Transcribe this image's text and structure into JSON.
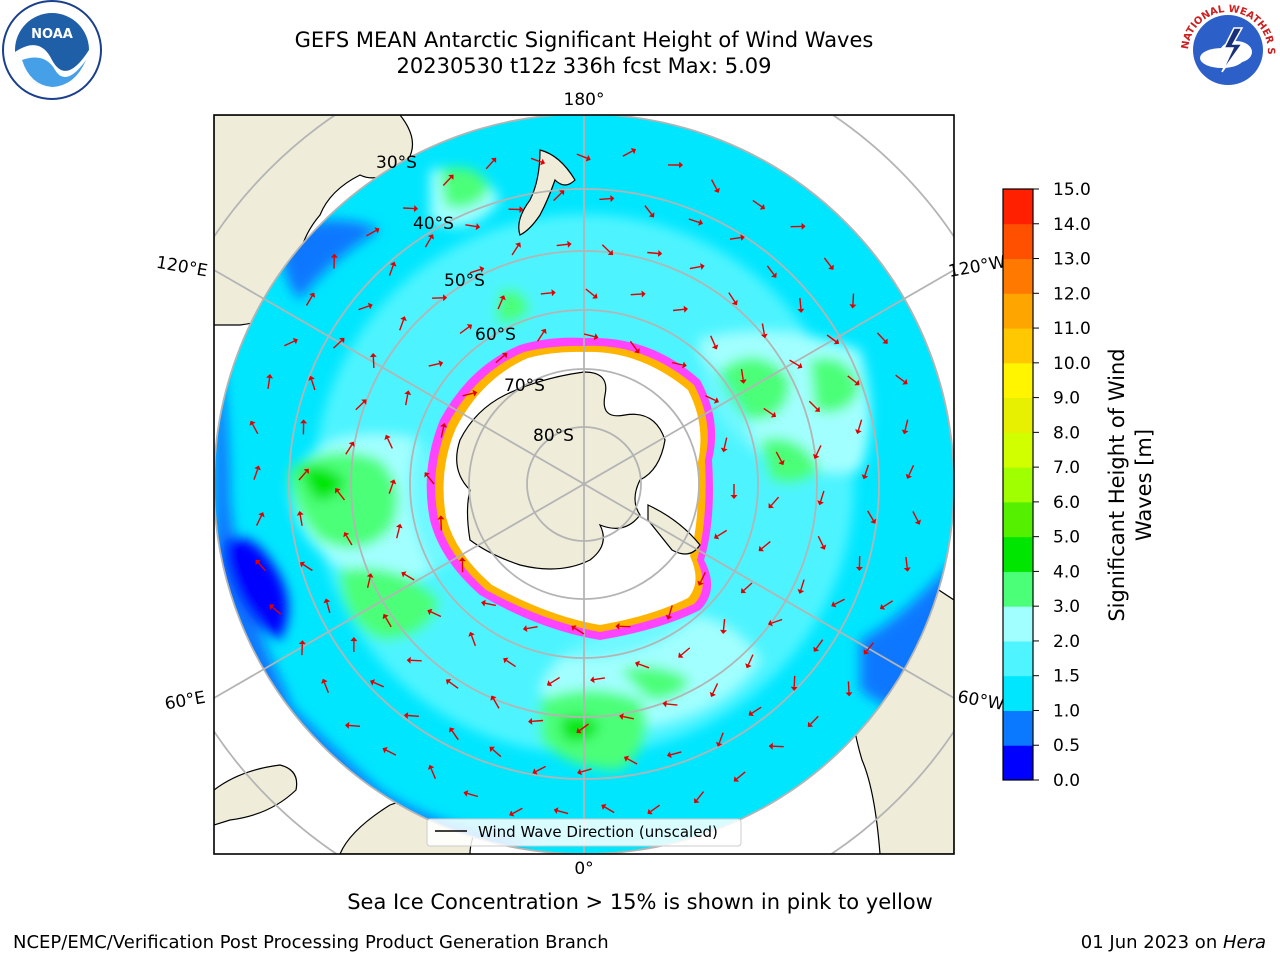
{
  "title": {
    "line1": "GEFS MEAN Antarctic Significant Height of Wind Waves",
    "line2": "20230530 t12z 336h fcst   Max: 5.09"
  },
  "map": {
    "projection": "south-polar-stereographic",
    "longitude_labels": {
      "top": "180°",
      "bottom": "0°",
      "upper_left": "120°E",
      "lower_left": "60°E",
      "upper_right": "120°W",
      "lower_right": "60°W"
    },
    "latitude_labels": [
      "30°S",
      "40°S",
      "50°S",
      "60°S",
      "70°S",
      "80°S"
    ],
    "legend_label": "Wind Wave Direction (unscaled)",
    "colors": {
      "land": "#efedda",
      "coastline": "#000000",
      "graticule": "#b4b4b4",
      "arrow": "#e10000",
      "ice_pink": "#ff44ff",
      "ice_yellow": "#ffb400"
    }
  },
  "colorbar": {
    "label": "Significant Height of Wind Waves [m]",
    "ticks": [
      "0.0",
      "0.5",
      "1.0",
      "1.5",
      "2.0",
      "3.0",
      "4.0",
      "5.0",
      "6.0",
      "7.0",
      "8.0",
      "9.0",
      "10.0",
      "11.0",
      "12.0",
      "13.0",
      "14.0",
      "15.0"
    ],
    "colors": [
      "#0000ff",
      "#0a78ff",
      "#00e6ff",
      "#4ef4ff",
      "#a2ffff",
      "#4cff78",
      "#00e600",
      "#55f000",
      "#a0ff00",
      "#d2ff00",
      "#e6f000",
      "#fff500",
      "#ffc800",
      "#ffa500",
      "#ff7800",
      "#ff5000",
      "#ff2000"
    ]
  },
  "footer": {
    "note": "Sea Ice Concentration > 15% is shown in pink to yellow",
    "credit_left": "NCEP/EMC/Verification Post Processing Product Generation Branch",
    "credit_right_date": "01 Jun 2023 on ",
    "credit_right_host": "Hera"
  },
  "logos": {
    "left": {
      "icon": "noaa-logo",
      "text": "NOAA"
    },
    "right": {
      "icon": "national-weather-service-logo",
      "text": "NATIONAL WEATHER SERVICE"
    }
  }
}
